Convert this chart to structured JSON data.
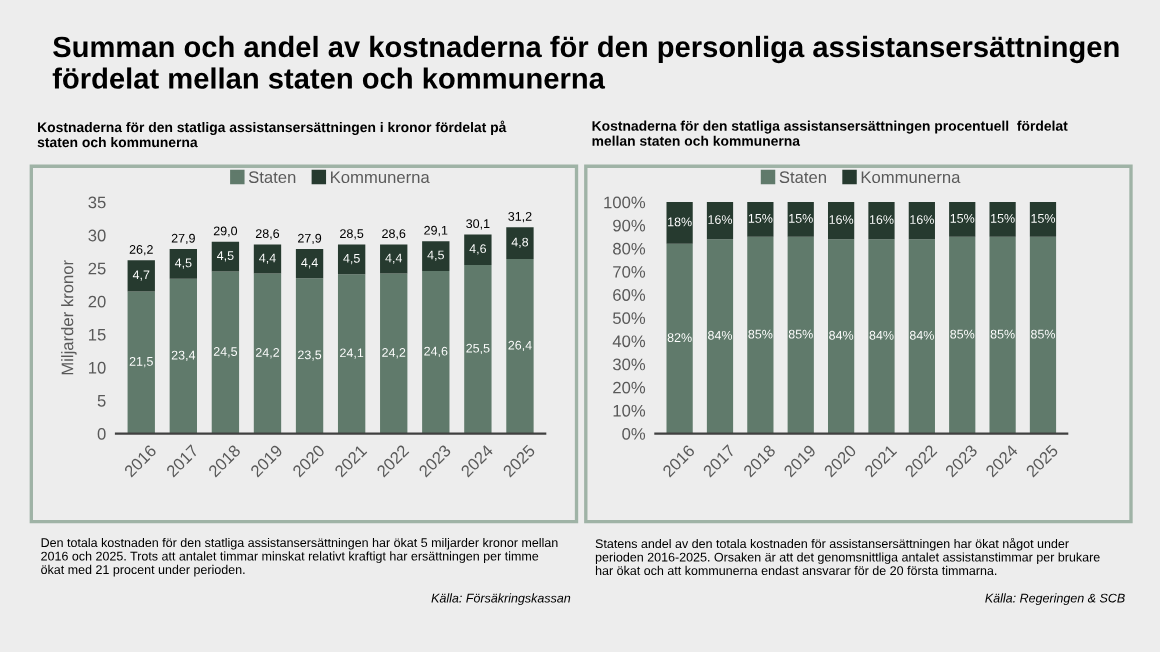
{
  "chart_data": [
    {
      "type": "bar",
      "title": "Summan och andel av kostnaderna för den personliga assistansersättningen fördelat mellan staten och kommunerna",
      "subtitle": "Kostnaderna för den statliga assistansersättningen i kronor fördelat på staten och kommunerna",
      "ylabel": "Miljarder kronor",
      "categories": [
        "2016",
        "2017",
        "2018",
        "2019",
        "2020",
        "2021",
        "2022",
        "2023",
        "2024",
        "2025"
      ],
      "stacked": true,
      "legend": "top",
      "grid": false,
      "ylim": [
        0,
        35
      ],
      "yticks": [
        0,
        5,
        10,
        15,
        20,
        25,
        30,
        35
      ],
      "series": [
        {
          "name": "Staten",
          "color": "#607a6b",
          "values": [
            21.5,
            23.4,
            24.5,
            24.2,
            23.5,
            24.1,
            24.2,
            24.6,
            25.5,
            26.4
          ],
          "value_labels": [
            "21,5",
            "23,4",
            "24,5",
            "24,2",
            "23,5",
            "24,1",
            "24,2",
            "24,6",
            "25,5",
            "26,4"
          ]
        },
        {
          "name": "Kommunerna",
          "color": "#263a2f",
          "values": [
            4.7,
            4.5,
            4.5,
            4.4,
            4.4,
            4.5,
            4.4,
            4.5,
            4.6,
            4.8
          ],
          "value_labels": [
            "4,7",
            "4,5",
            "4,5",
            "4,4",
            "4,4",
            "4,5",
            "4,4",
            "4,5",
            "4,6",
            "4,8"
          ]
        }
      ],
      "totals": [
        "26,2",
        "27,9",
        "29,0",
        "28,6",
        "27,9",
        "28,5",
        "28,6",
        "29,1",
        "30,1",
        "31,2"
      ],
      "annotations": [
        "Den totala kostnaden för den statliga assistansersättningen har ökat 5 miljarder kronor mellan 2016 och 2025. Trots att antalet timmar minskat relativt kraftigt har ersättningen per timme ökat med 21 procent under perioden.",
        "Källa: Försäkringskassan"
      ]
    },
    {
      "type": "bar",
      "subtitle": "Kostnaderna för den statliga assistansersättningen procentuell  fördelat mellan staten och kommunerna",
      "categories": [
        "2016",
        "2017",
        "2018",
        "2019",
        "2020",
        "2021",
        "2022",
        "2023",
        "2024",
        "2025"
      ],
      "stacked": true,
      "legend": "top",
      "grid": false,
      "ylim": [
        0,
        100
      ],
      "yticks": [
        {
          "value": 0,
          "label": "0%"
        },
        {
          "value": 10,
          "label": "10%"
        },
        {
          "value": 20,
          "label": "20%"
        },
        {
          "value": 30,
          "label": "30%"
        },
        {
          "value": 40,
          "label": "40%"
        },
        {
          "value": 50,
          "label": "50%"
        },
        {
          "value": 60,
          "label": "60%"
        },
        {
          "value": 70,
          "label": "70%"
        },
        {
          "value": 80,
          "label": "80%"
        },
        {
          "value": 90,
          "label": "90%"
        },
        {
          "value": 100,
          "label": "100%"
        }
      ],
      "series": [
        {
          "name": "Staten",
          "color": "#607a6b",
          "values": [
            82,
            84,
            85,
            85,
            84,
            84,
            84,
            85,
            85,
            85
          ],
          "value_labels": [
            "82%",
            "84%",
            "85%",
            "85%",
            "84%",
            "84%",
            "84%",
            "85%",
            "85%",
            "85%"
          ]
        },
        {
          "name": "Kommunerna",
          "color": "#263a2f",
          "values": [
            18,
            16,
            15,
            15,
            16,
            16,
            16,
            15,
            15,
            15
          ],
          "value_labels": [
            "18%",
            "16%",
            "15%",
            "15%",
            "16%",
            "16%",
            "16%",
            "15%",
            "15%",
            "15%"
          ]
        }
      ],
      "annotations": [
        "Statens andel av den totala kostnaden för assistansersättningen har ökat något under perioden 2016-2025. Orsaken är att det genomsnittliga antalet assistanstimmar per brukare har ökat och att kommunerna endast ansvarar för de 20 första timmarna.",
        "Källa: Regeringen & SCB"
      ]
    }
  ]
}
